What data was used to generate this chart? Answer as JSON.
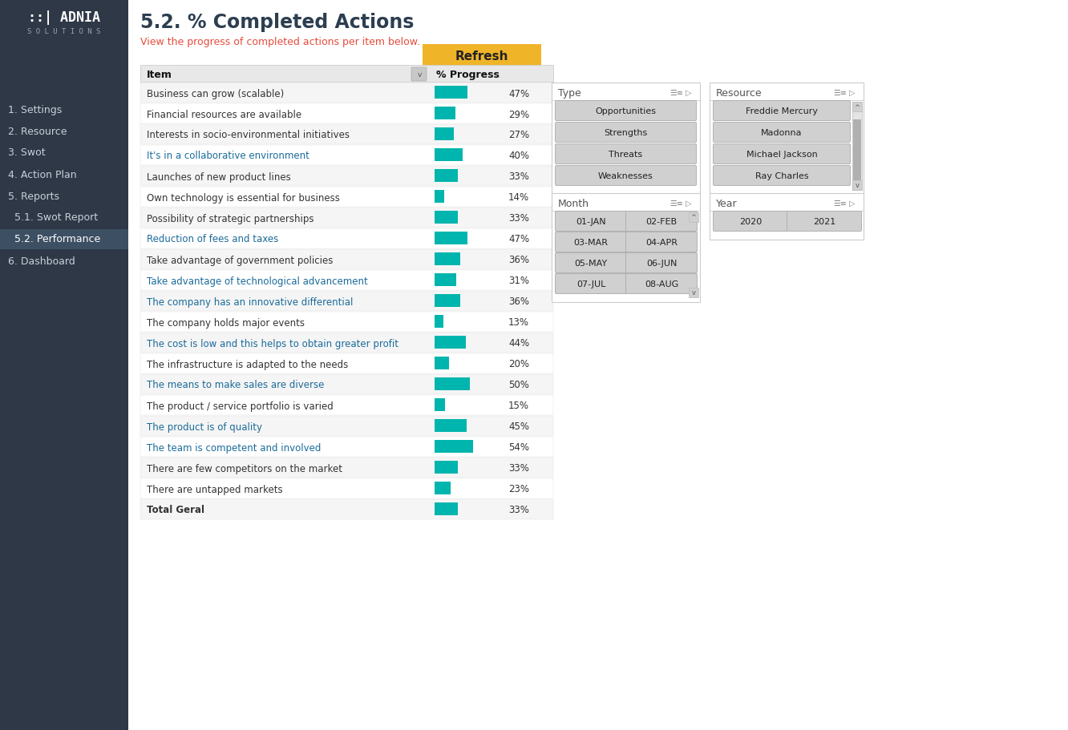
{
  "sidebar_bg": "#2e3847",
  "nav_items": [
    {
      "label": "1. Settings",
      "active": false
    },
    {
      "label": "2. Resource",
      "active": false
    },
    {
      "label": "3. Swot",
      "active": false
    },
    {
      "label": "4. Action Plan",
      "active": false
    },
    {
      "label": "5. Reports",
      "active": false
    },
    {
      "label": "  5.1. Swot Report",
      "active": false
    },
    {
      "label": "  5.2. Performance",
      "active": true
    },
    {
      "label": "6. Dashboard",
      "active": false
    }
  ],
  "main_bg": "#ffffff",
  "title": "5.2. % Completed Actions",
  "subtitle": "View the progress of completed actions per item below.",
  "subtitle_color": "#e74c3c",
  "title_color": "#2c3e50",
  "refresh_btn_color": "#f0b429",
  "refresh_btn_text": "Refresh",
  "table_header_bg": "#e8e8e8",
  "table_row_bg_alt": "#f5f5f5",
  "table_row_bg": "#ffffff",
  "bar_color": "#00b5ad",
  "items": [
    {
      "label": "Business can grow (scalable)",
      "value": 47,
      "color": "#333333",
      "bold": false
    },
    {
      "label": "Financial resources are available",
      "value": 29,
      "color": "#333333",
      "bold": false
    },
    {
      "label": "Interests in socio-environmental initiatives",
      "value": 27,
      "color": "#333333",
      "bold": false
    },
    {
      "label": "It's in a collaborative environment",
      "value": 40,
      "color": "#1a6b9a",
      "bold": false
    },
    {
      "label": "Launches of new product lines",
      "value": 33,
      "color": "#333333",
      "bold": false
    },
    {
      "label": "Own technology is essential for business",
      "value": 14,
      "color": "#333333",
      "bold": false
    },
    {
      "label": "Possibility of strategic partnerships",
      "value": 33,
      "color": "#333333",
      "bold": false
    },
    {
      "label": "Reduction of fees and taxes",
      "value": 47,
      "color": "#1a6b9a",
      "bold": false
    },
    {
      "label": "Take advantage of government policies",
      "value": 36,
      "color": "#333333",
      "bold": false
    },
    {
      "label": "Take advantage of technological advancement",
      "value": 31,
      "color": "#1a6b9a",
      "bold": false
    },
    {
      "label": "The company has an innovative differential",
      "value": 36,
      "color": "#1a6b9a",
      "bold": false
    },
    {
      "label": "The company holds major events",
      "value": 13,
      "color": "#333333",
      "bold": false
    },
    {
      "label": "The cost is low and this helps to obtain greater profit",
      "value": 44,
      "color": "#1a6b9a",
      "bold": false
    },
    {
      "label": "The infrastructure is adapted to the needs",
      "value": 20,
      "color": "#333333",
      "bold": false
    },
    {
      "label": "The means to make sales are diverse",
      "value": 50,
      "color": "#1a6b9a",
      "bold": false
    },
    {
      "label": "The product / service portfolio is varied",
      "value": 15,
      "color": "#333333",
      "bold": false
    },
    {
      "label": "The product is of quality",
      "value": 45,
      "color": "#1a6b9a",
      "bold": false
    },
    {
      "label": "The team is competent and involved",
      "value": 54,
      "color": "#1a6b9a",
      "bold": false
    },
    {
      "label": "There are few competitors on the market",
      "value": 33,
      "color": "#333333",
      "bold": false
    },
    {
      "label": "There are untapped markets",
      "value": 23,
      "color": "#333333",
      "bold": false
    },
    {
      "label": "Total Geral",
      "value": 33,
      "color": "#333333",
      "bold": true
    }
  ],
  "type_filter_title": "Type",
  "type_options": [
    "Opportunities",
    "Strengths",
    "Threats",
    "Weaknesses"
  ],
  "resource_filter_title": "Resource",
  "resource_options": [
    "Freddie Mercury",
    "Madonna",
    "Michael Jackson",
    "Ray Charles"
  ],
  "month_filter_title": "Month",
  "month_options": [
    "01-JAN",
    "02-FEB",
    "03-MAR",
    "04-APR",
    "05-MAY",
    "06-JUN",
    "07-JUL",
    "08-AUG"
  ],
  "year_filter_title": "Year",
  "year_options": [
    "2020",
    "2021"
  ],
  "filter_title_color": "#555555",
  "filter_option_bg": "#d0d0d0",
  "filter_border_color": "#aaaaaa",
  "sidebar_active_bg": "#3d4f63",
  "sidebar_text_color": "#c8d0d8",
  "sidebar_active_text": "#ffffff"
}
